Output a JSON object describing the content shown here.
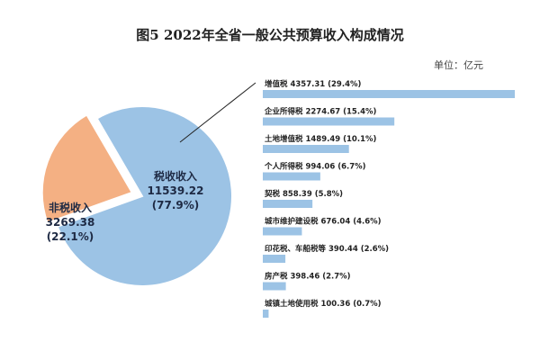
{
  "chart_data": [
    {
      "type": "pie",
      "title": "图5  2022年全省一般公共预算收入构成情况",
      "slices": [
        {
          "label": "税收收入",
          "value": 11539.22,
          "percent_label": "(77.9%)",
          "color": "#9cc3e5"
        },
        {
          "label": "非税收入",
          "value": 3269.38,
          "percent_label": "(22.1%)",
          "color": "#f4b083"
        }
      ]
    },
    {
      "type": "bar",
      "orientation": "horizontal",
      "unit": "单位：亿元",
      "categories": [
        "增值税",
        "企业所得税",
        "土地增值税",
        "个人所得税",
        "契税",
        "城市维护建设税",
        "印花税、车船税等",
        "房产税",
        "城镇土地使用税"
      ],
      "values": [
        4357.31,
        2274.67,
        1489.49,
        994.06,
        858.39,
        676.04,
        390.44,
        398.46,
        100.36
      ],
      "value_labels": [
        "4357.31",
        "2274.67",
        "1489.49",
        "994.06",
        "858.39",
        "676.04",
        "390.44",
        "398.46",
        "100.36"
      ],
      "percent_labels": [
        "(29.4%)",
        "(15.4%)",
        "(10.1%)",
        "(6.7%)",
        "(5.8%)",
        "(4.6%)",
        "(2.6%)",
        "(2.7%)",
        "(0.7%)"
      ],
      "color": "#9cc3e5"
    }
  ]
}
